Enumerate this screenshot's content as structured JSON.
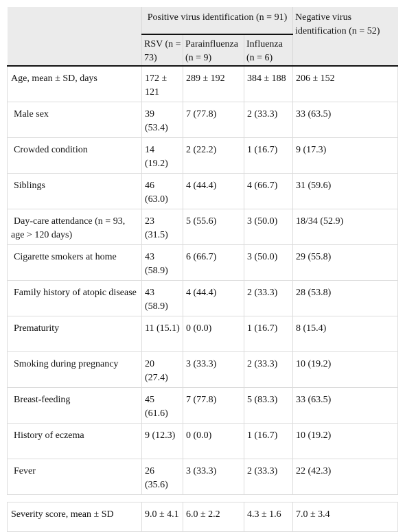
{
  "header": {
    "positive_group": "Positive virus identification (n = 91)",
    "negative_group": "Negative virus identification (n = 52)",
    "sub_rsv": "RSV (n = 73)",
    "sub_parainfluenza": "Parainfluenza (n = 9)",
    "sub_influenza": "Influenza (n = 6)"
  },
  "rows": [
    {
      "label": "Age, mean ± SD, days",
      "rsv": "172 ± 121",
      "para": "289 ± 192",
      "flu": "384 ± 188",
      "neg": "206 ± 152"
    },
    {
      "label": "Male sex",
      "rsv": "39 (53.4)",
      "para": "7 (77.8)",
      "flu": "2 (33.3)",
      "neg": "33 (63.5)"
    },
    {
      "label": "Crowded condition",
      "rsv": "14 (19.2)",
      "para": "2 (22.2)",
      "flu": "1 (16.7)",
      "neg": "9 (17.3)"
    },
    {
      "label": "Siblings",
      "rsv": "46 (63.0)",
      "para": "4 (44.4)",
      "flu": "4 (66.7)",
      "neg": "31 (59.6)"
    },
    {
      "label": "Day-care attendance (n = 93, age > 120 days)",
      "rsv": "23 (31.5)",
      "para": "5 (55.6)",
      "flu": "3 (50.0)",
      "neg": "18/34 (52.9)"
    },
    {
      "label": "Cigarette smokers at home",
      "rsv": "43 (58.9)",
      "para": "6 (66.7)",
      "flu": "3 (50.0)",
      "neg": "29 (55.8)"
    },
    {
      "label": "Family history of atopic disease",
      "rsv": "43 (58.9)",
      "para": "4 (44.4)",
      "flu": "2 (33.3)",
      "neg": "28 (53.8)"
    },
    {
      "label": "Prematurity",
      "rsv": "11 (15.1)",
      "para": "0 (0.0)",
      "flu": "1 (16.7)",
      "neg": "8 (15.4)"
    },
    {
      "label": "Smoking during pregnancy",
      "rsv": "20 (27.4)",
      "para": "3 (33.3)",
      "flu": "2 (33.3)",
      "neg": "10 (19.2)"
    },
    {
      "label": "Breast-feeding",
      "rsv": "45 (61.6)",
      "para": "7 (77.8)",
      "flu": "5 (83.3)",
      "neg": "33 (63.5)"
    },
    {
      "label": "History of eczema",
      "rsv": "9 (12.3)",
      "para": "0 (0.0)",
      "flu": "1 (16.7)",
      "neg": "10 (19.2)"
    },
    {
      "label": "Fever",
      "rsv": "26 (35.6)",
      "para": "3 (33.3)",
      "flu": "2 (33.3)",
      "neg": "22 (42.3)"
    }
  ],
  "severity": {
    "label": "Severity score, mean ± SD",
    "rsv": "9.0 ± 4.1",
    "para": "6.0 ± 2.2",
    "flu": "4.3 ± 1.6",
    "neg": "7.0 ± 3.4"
  }
}
